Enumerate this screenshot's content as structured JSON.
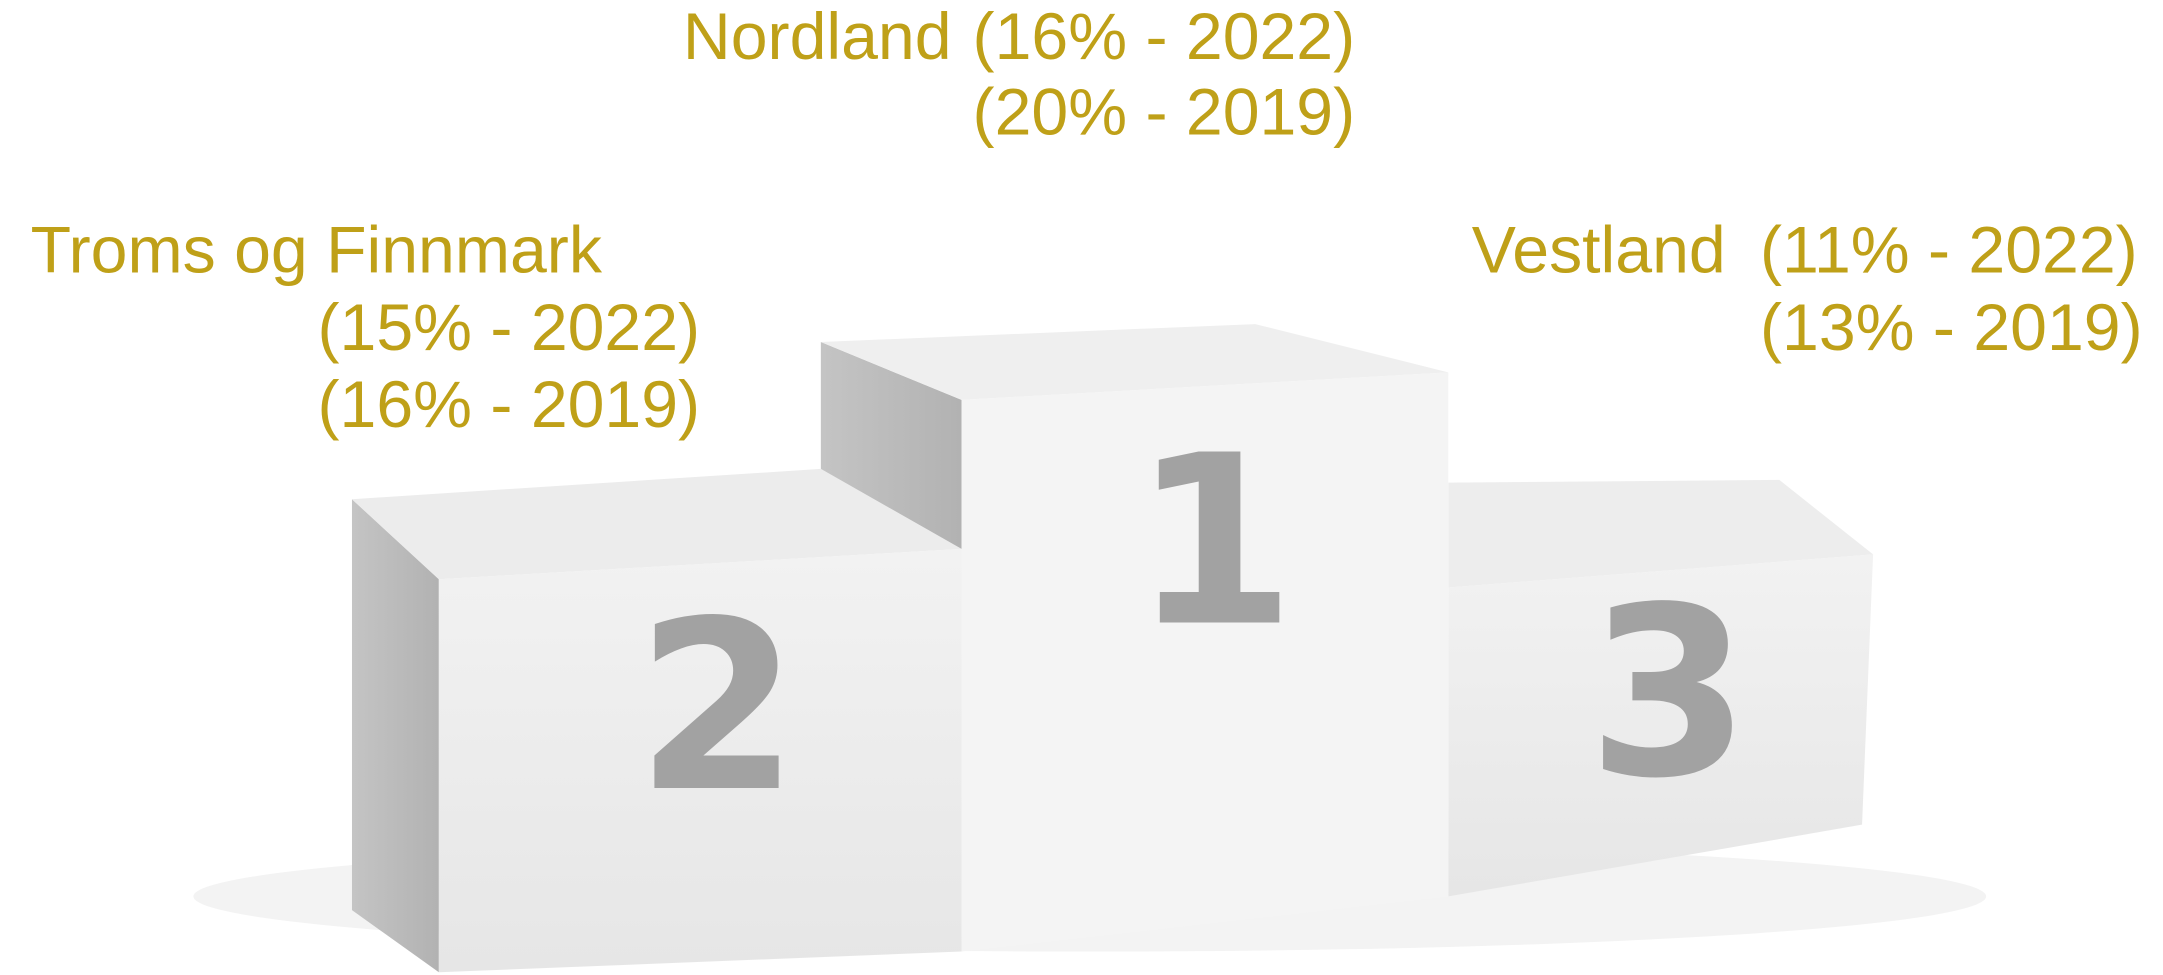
{
  "podium": [
    {
      "rank": "1",
      "name": "Nordland",
      "lines": [
        "(16% - 2022)",
        "(20% - 2019)"
      ]
    },
    {
      "rank": "2",
      "name": "Troms og Finnmark",
      "lines": [
        "(15% - 2022)",
        "(16% - 2019)"
      ]
    },
    {
      "rank": "3",
      "name": "Vestland",
      "lines": [
        "(11% - 2022)",
        "(13% - 2019)"
      ]
    }
  ]
}
